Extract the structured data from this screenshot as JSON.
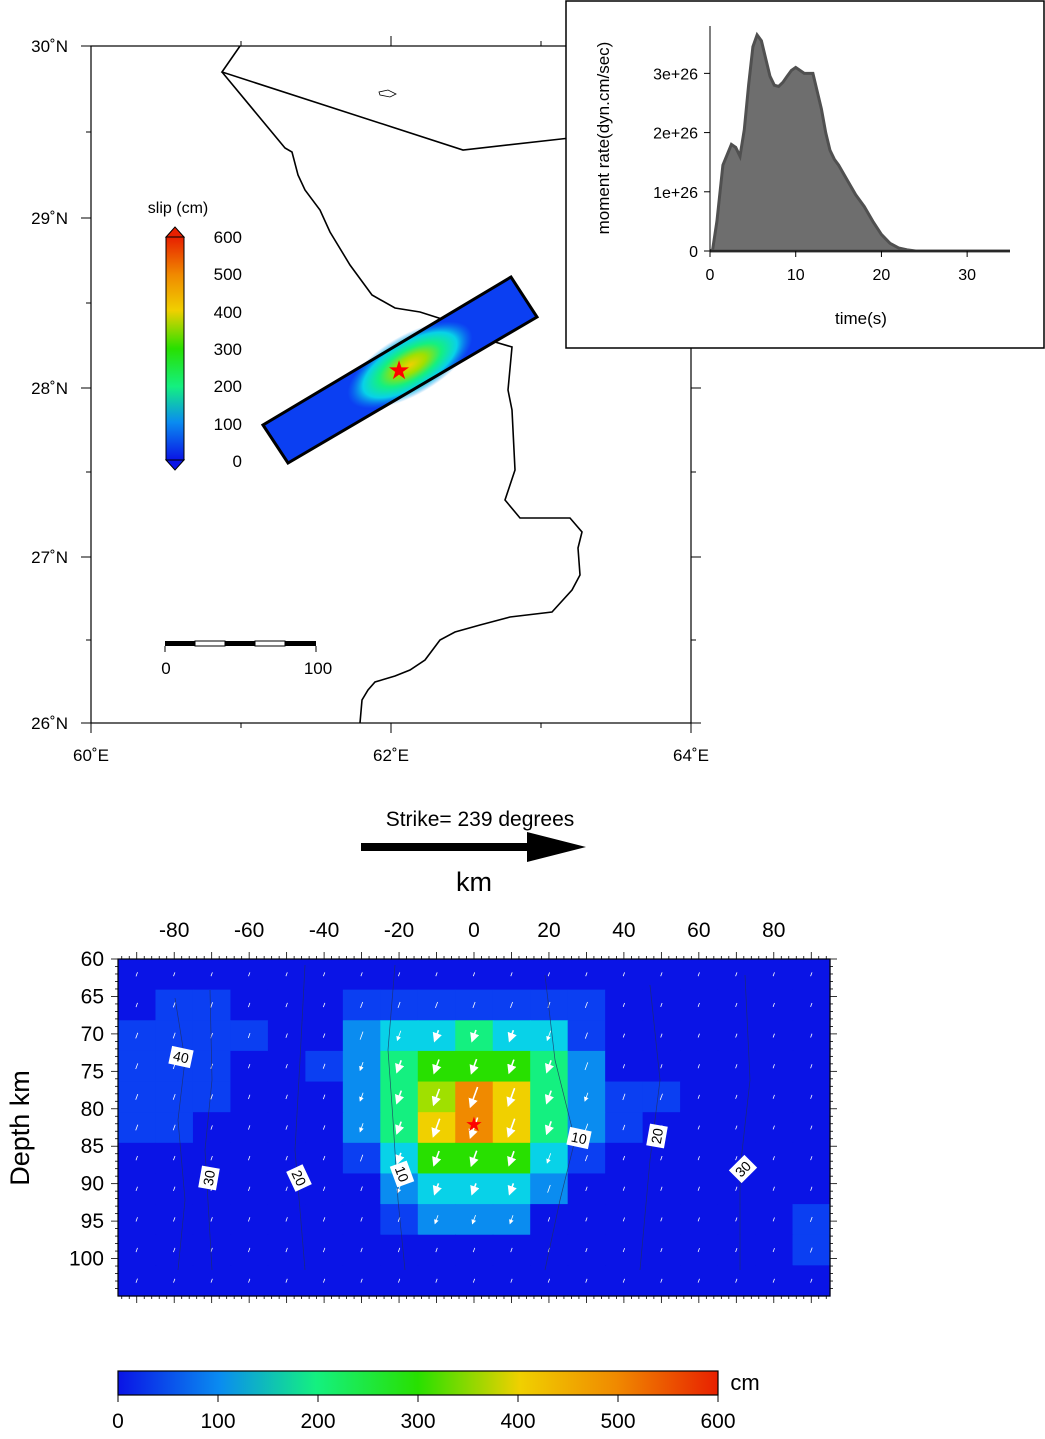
{
  "colors": {
    "cpt": [
      "#0a14e6",
      "#0b3ff2",
      "#0a8cf0",
      "#08d2e8",
      "#14f080",
      "#28e000",
      "#a0e000",
      "#f0d000",
      "#f08a00",
      "#e82000"
    ],
    "fault_outline": "#000000",
    "epicenter": "#ff0000",
    "stf_fill": "#6e6e6e",
    "stf_line": "#505050",
    "arrow": "#000000"
  },
  "chart_data": [
    {
      "type": "map",
      "x_tick_labels": [
        "60˚E",
        "62˚E",
        "64˚E"
      ],
      "y_tick_labels": [
        "30˚N",
        "29˚N",
        "28˚N",
        "27˚N",
        "26˚N"
      ],
      "xlim": [
        60,
        64
      ],
      "ylim": [
        26,
        30
      ],
      "epicenter": [
        62.05,
        28.1
      ],
      "fault_corners": [
        [
          61.15,
          27.78
        ],
        [
          61.3,
          27.55
        ],
        [
          62.97,
          28.43
        ],
        [
          62.8,
          28.67
        ]
      ],
      "scale_bar": {
        "labels": [
          "0",
          "100"
        ]
      },
      "colorbar": {
        "title": "slip (cm)",
        "ticks": [
          "600",
          "500",
          "400",
          "300",
          "200",
          "100",
          "0"
        ],
        "range": [
          0,
          600
        ]
      }
    },
    {
      "type": "area",
      "xlabel": "time(s)",
      "ylabel": "moment rate(dyn.cm/sec)",
      "x_tick_labels": [
        "0",
        "10",
        "20",
        "30"
      ],
      "y_tick_labels": [
        "0",
        "1e+26",
        "2e+26",
        "3e+26"
      ],
      "xlim": [
        0,
        35
      ],
      "ylim": [
        0,
        3.8e+26
      ],
      "x": [
        0,
        0.3,
        0.8,
        1.5,
        2.5,
        3,
        3.5,
        4,
        4.5,
        5,
        5.5,
        6,
        6.5,
        7,
        7.5,
        8,
        8.5,
        9,
        9.5,
        10,
        11,
        12,
        13,
        13.5,
        14,
        14.5,
        15,
        16,
        17,
        18,
        19,
        20,
        21,
        22,
        23,
        24,
        25,
        35
      ],
      "y": [
        0,
        2e+24,
        5e+25,
        1.45e+26,
        1.8e+26,
        1.75e+26,
        1.6e+26,
        2.05e+26,
        2.8e+26,
        3.45e+26,
        3.65e+26,
        3.55e+26,
        3.25e+26,
        2.95e+26,
        2.8e+26,
        2.78e+26,
        2.85e+26,
        2.95e+26,
        3.05e+26,
        3.1e+26,
        3e+26,
        3e+26,
        2.4e+26,
        2e+26,
        1.7e+26,
        1.55e+26,
        1.45e+26,
        1.2e+26,
        9.5e+25,
        7.5e+25,
        5e+25,
        2.8e+25,
        1.3e+25,
        5e+24,
        2e+24,
        0.0,
        0,
        0
      ]
    },
    {
      "type": "heatmap",
      "strike_label": "Strike= 239 degrees",
      "xlabel": "km",
      "ylabel": "Depth km",
      "x_tick_labels": [
        "-80",
        "-60",
        "-40",
        "-20",
        "0",
        "20",
        "40",
        "60",
        "80"
      ],
      "y_tick_labels": [
        "60",
        "65",
        "70",
        "75",
        "80",
        "85",
        "90",
        "95",
        "100"
      ],
      "xlim": [
        -95,
        95
      ],
      "ylim": [
        60,
        105
      ],
      "cell_km": 10,
      "cell_depth_km": 5,
      "hypocenter": [
        0,
        82
      ],
      "contour_labels": [
        "40",
        "30",
        "20",
        "10",
        "10",
        "20",
        "30"
      ],
      "slip_cm": [
        [
          40,
          30,
          30,
          30,
          30,
          30,
          30,
          30,
          30,
          30,
          30,
          30,
          30,
          30,
          30,
          30,
          30,
          30,
          30
        ],
        [
          40,
          60,
          70,
          40,
          40,
          40,
          90,
          90,
          90,
          90,
          90,
          90,
          90,
          30,
          30,
          30,
          30,
          30,
          30
        ],
        [
          80,
          80,
          70,
          60,
          40,
          40,
          150,
          200,
          230,
          240,
          230,
          200,
          90,
          30,
          30,
          30,
          30,
          30,
          30
        ],
        [
          80,
          80,
          60,
          40,
          40,
          60,
          160,
          260,
          310,
          330,
          300,
          260,
          140,
          30,
          30,
          30,
          30,
          30,
          30
        ],
        [
          80,
          80,
          60,
          40,
          40,
          50,
          160,
          280,
          380,
          490,
          420,
          280,
          160,
          100,
          100,
          30,
          30,
          30,
          30
        ],
        [
          80,
          80,
          40,
          40,
          40,
          40,
          160,
          260,
          430,
          500,
          430,
          280,
          140,
          70,
          40,
          30,
          30,
          30,
          30
        ],
        [
          40,
          40,
          40,
          40,
          40,
          40,
          110,
          220,
          330,
          350,
          320,
          200,
          90,
          40,
          40,
          30,
          30,
          30,
          30
        ],
        [
          40,
          40,
          40,
          40,
          40,
          40,
          50,
          160,
          230,
          230,
          230,
          140,
          40,
          30,
          30,
          30,
          30,
          30,
          30
        ],
        [
          40,
          40,
          40,
          40,
          40,
          40,
          40,
          60,
          160,
          170,
          160,
          40,
          30,
          30,
          30,
          30,
          30,
          30,
          60
        ],
        [
          40,
          40,
          40,
          40,
          40,
          40,
          40,
          40,
          40,
          40,
          40,
          40,
          30,
          30,
          30,
          30,
          30,
          30,
          60
        ],
        [
          40,
          30,
          30,
          30,
          30,
          30,
          30,
          30,
          30,
          30,
          30,
          30,
          30,
          30,
          30,
          30,
          30,
          30,
          30
        ]
      ],
      "rake_deg": 250
    },
    {
      "type": "colorbar",
      "label": "cm",
      "tick_labels": [
        "0",
        "100",
        "200",
        "300",
        "400",
        "500",
        "600"
      ],
      "range": [
        0,
        600
      ]
    }
  ]
}
